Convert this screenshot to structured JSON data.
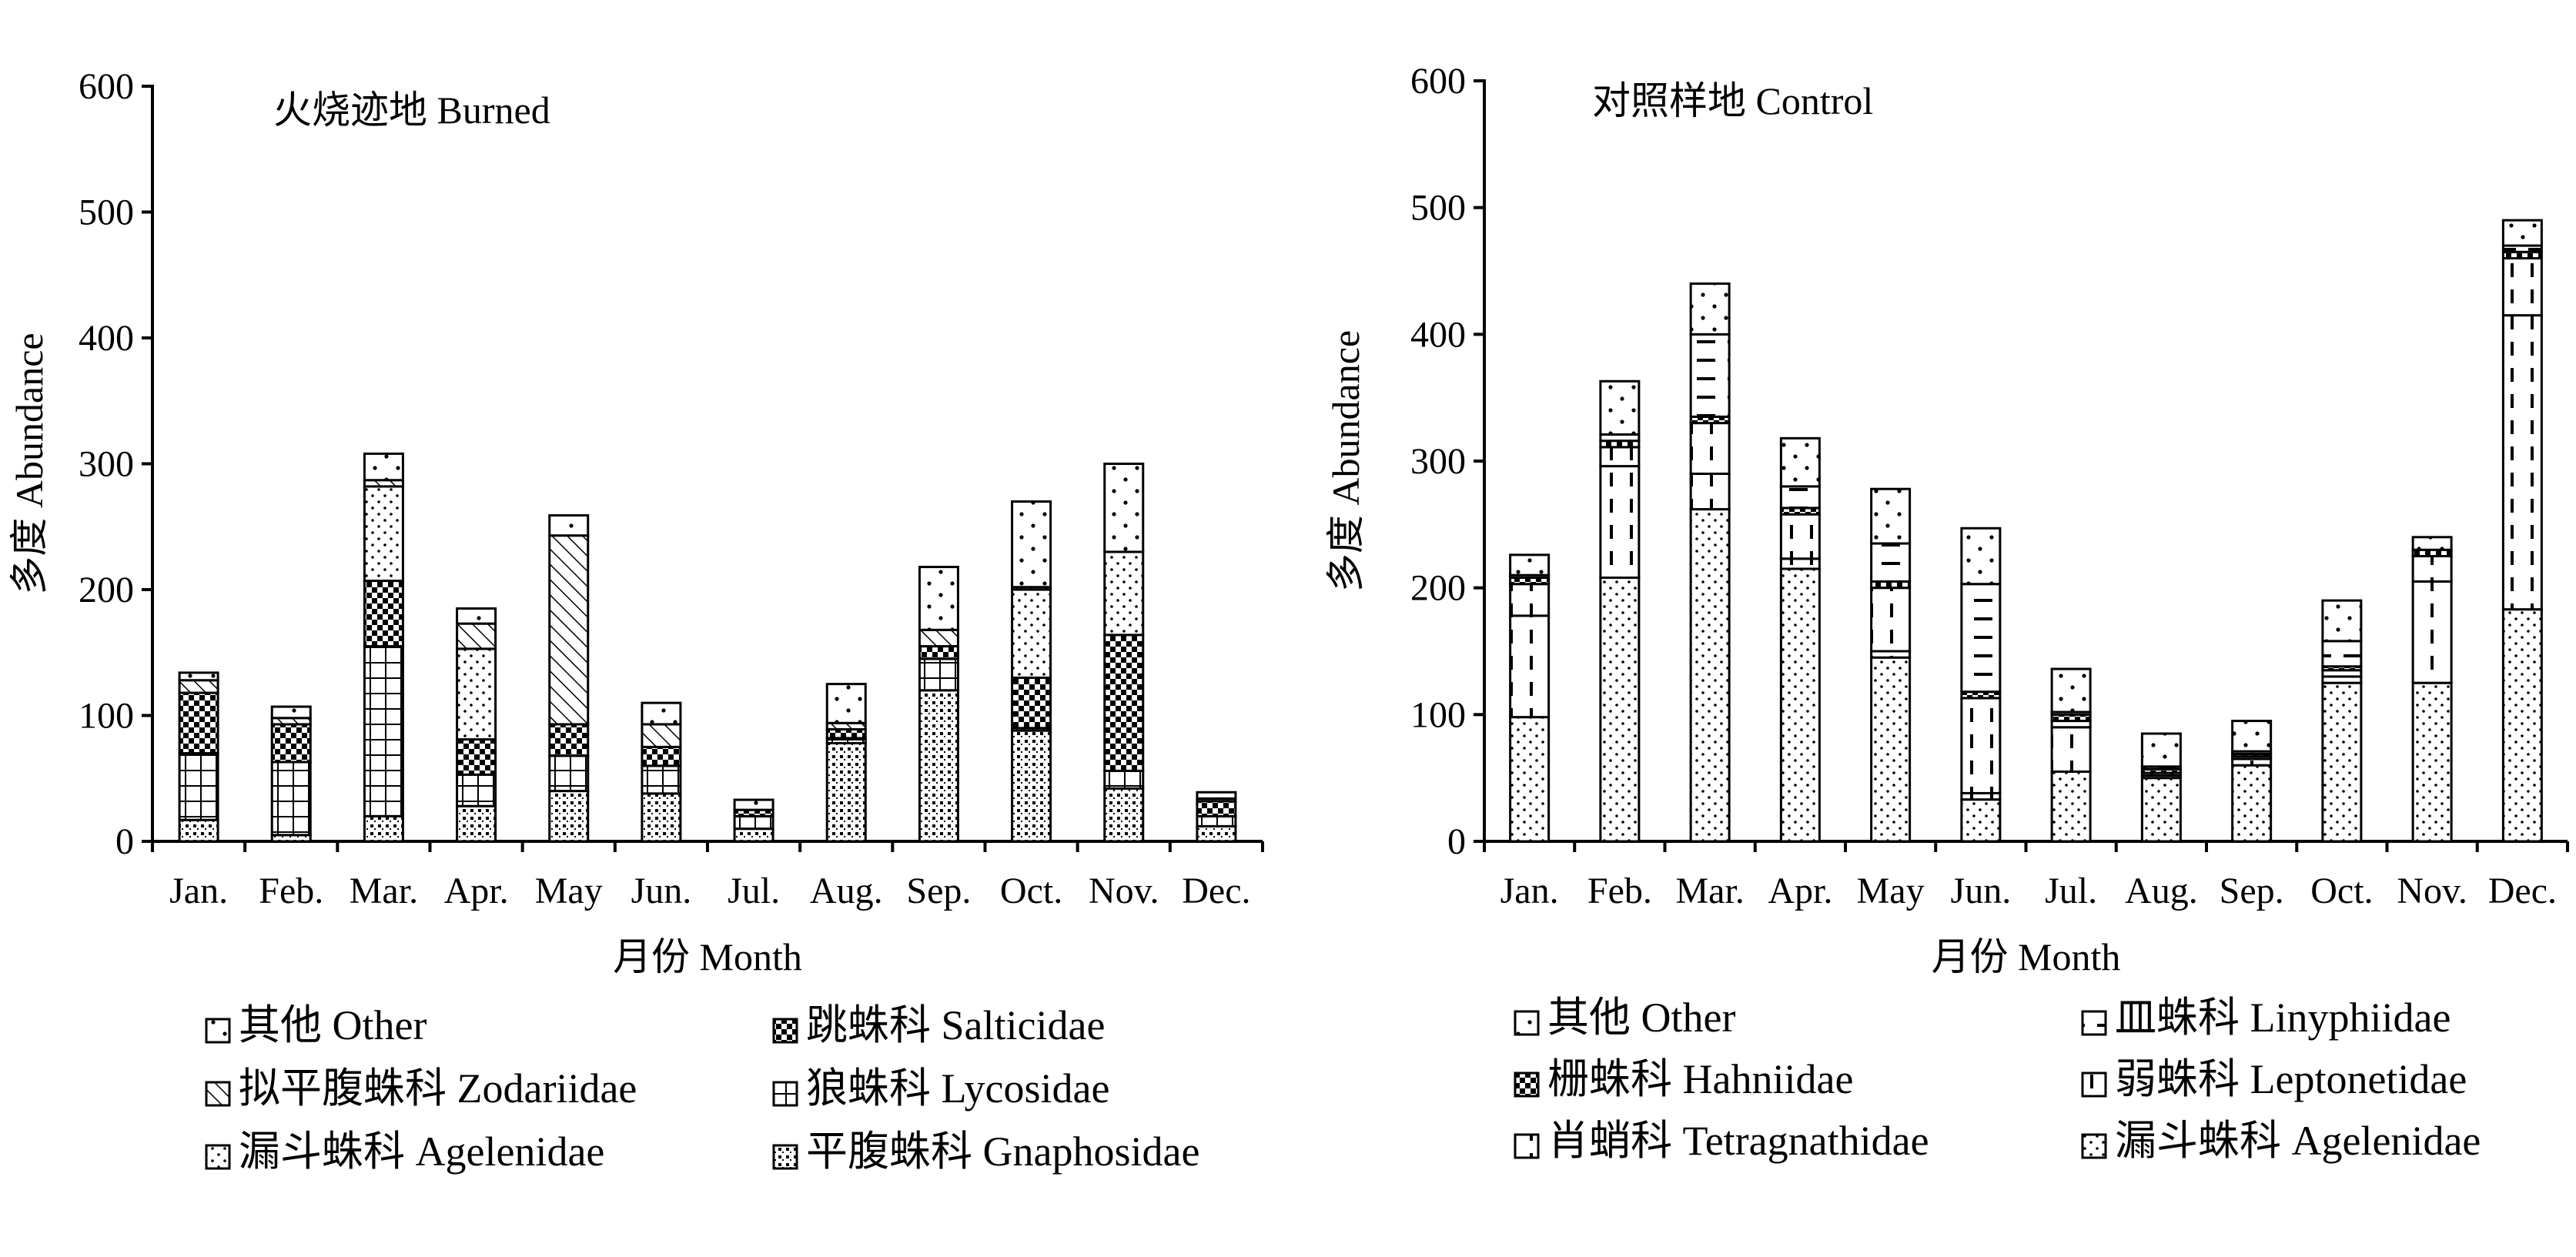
{
  "chart_data": [
    {
      "type": "bar",
      "stacked": true,
      "title": "火烧迹地  Burned",
      "xlabel": "月份 Month",
      "ylabel": "多度  Abundance",
      "ylim": [
        0,
        600
      ],
      "yticks": [
        "0",
        "100",
        "200",
        "300",
        "400",
        "500",
        "600"
      ],
      "categories": [
        "Jan.",
        "Feb.",
        "Mar.",
        "Apr.",
        "May",
        "Jun.",
        "Jul.",
        "Aug.",
        "Sep.",
        "Oct.",
        "Nov.",
        "Dec."
      ],
      "legend_position": "bottom",
      "series": [
        {
          "name": "平腹蛛科 Gnaphosidae",
          "pattern": "dotgrid",
          "values": [
            17,
            5,
            20,
            28,
            40,
            38,
            10,
            78,
            120,
            88,
            42,
            12
          ]
        },
        {
          "name": "狼蛛科 Lycosidae",
          "pattern": "grid",
          "values": [
            53,
            58,
            135,
            25,
            28,
            22,
            10,
            4,
            25,
            2,
            14,
            8
          ]
        },
        {
          "name": "跳蛛科 Salticidae",
          "pattern": "checker",
          "values": [
            48,
            30,
            52,
            28,
            25,
            15,
            5,
            7,
            10,
            40,
            108,
            12
          ]
        },
        {
          "name": "漏斗蛛科 Agelenidae",
          "pattern": "dots",
          "values": [
            0,
            0,
            75,
            72,
            0,
            0,
            0,
            0,
            0,
            70,
            66,
            0
          ]
        },
        {
          "name": "拟平腹蛛科 Zodariidae",
          "pattern": "diag",
          "values": [
            10,
            5,
            5,
            20,
            150,
            18,
            0,
            5,
            13,
            2,
            0,
            2
          ]
        },
        {
          "name": "其他 Other",
          "pattern": "sparse",
          "values": [
            6,
            9,
            21,
            12,
            16,
            17,
            8,
            31,
            50,
            68,
            70,
            5
          ]
        }
      ],
      "legend_order": [
        "其他 Other",
        "跳蛛科 Salticidae",
        "拟平腹蛛科 Zodariidae",
        "狼蛛科 Lycosidae",
        "漏斗蛛科 Agelenidae",
        "平腹蛛科 Gnaphosidae"
      ]
    },
    {
      "type": "bar",
      "stacked": true,
      "title": "对照样地  Control",
      "xlabel": "月份 Month",
      "ylabel": "多度  Abundance",
      "ylim": [
        0,
        600
      ],
      "yticks": [
        "0",
        "100",
        "200",
        "300",
        "400",
        "500",
        "600"
      ],
      "categories": [
        "Jan.",
        "Feb.",
        "Mar.",
        "Apr.",
        "May",
        "Jun.",
        "Jul.",
        "Aug.",
        "Sep.",
        "Oct.",
        "Nov.",
        "Dec."
      ],
      "legend_position": "bottom",
      "series": [
        {
          "name": "漏斗蛛科 Agelenidae",
          "pattern": "dots",
          "values": [
            98,
            208,
            262,
            215,
            145,
            33,
            55,
            50,
            60,
            125,
            125,
            183
          ]
        },
        {
          "name": "弱蛛科 Leptonetidae",
          "pattern": "vdash",
          "values": [
            80,
            88,
            28,
            8,
            5,
            5,
            35,
            2,
            5,
            5,
            80,
            232
          ]
        },
        {
          "name": "肖蛸科 Tetragnathidae",
          "pattern": "vdash",
          "values": [
            25,
            15,
            40,
            35,
            50,
            75,
            5,
            2,
            2,
            5,
            20,
            45
          ]
        },
        {
          "name": "栅蛛科 Hahniidae",
          "pattern": "checker",
          "values": [
            5,
            5,
            5,
            5,
            5,
            5,
            5,
            3,
            2,
            3,
            5,
            5
          ]
        },
        {
          "name": "皿蛛科 Linyphiidae",
          "pattern": "hdash",
          "values": [
            2,
            5,
            65,
            17,
            30,
            85,
            2,
            2,
            2,
            20,
            0,
            5
          ]
        },
        {
          "name": "其他 Other",
          "pattern": "sparse",
          "values": [
            16,
            42,
            40,
            38,
            43,
            44,
            34,
            26,
            24,
            32,
            10,
            20
          ]
        }
      ],
      "legend_order": [
        "其他 Other",
        "皿蛛科 Linyphiidae",
        "栅蛛科 Hahniidae",
        "弱蛛科 Leptonetidae",
        "肖蛸科 Tetragnathidae",
        "漏斗蛛科 Agelenidae"
      ]
    }
  ]
}
